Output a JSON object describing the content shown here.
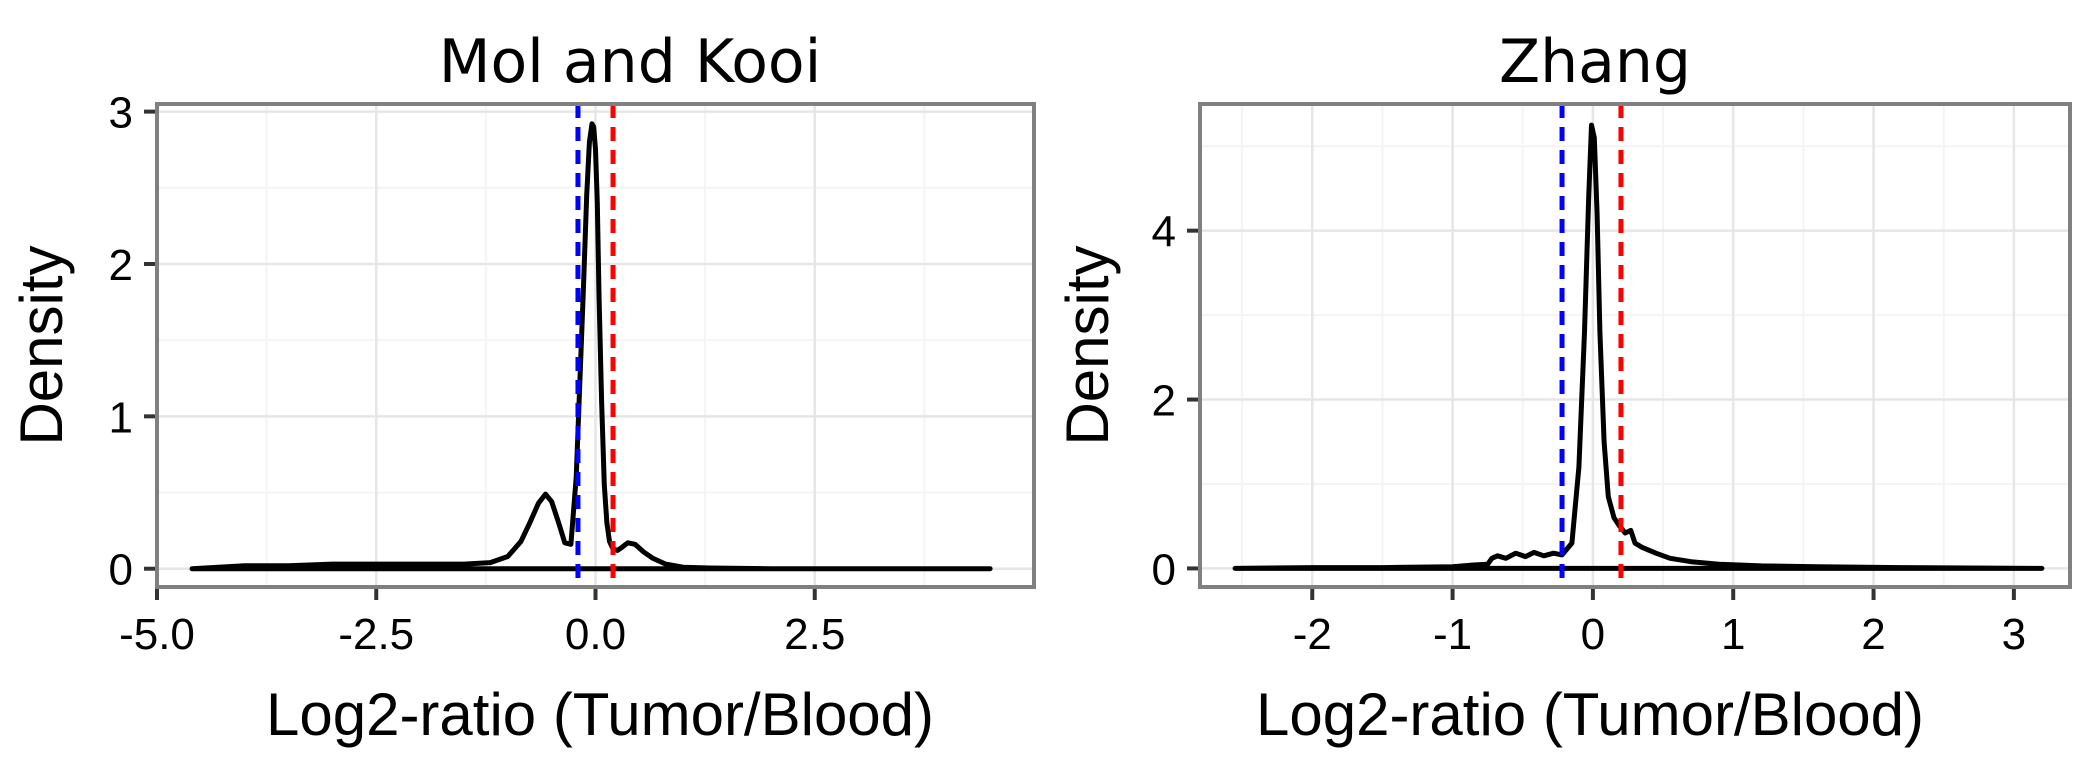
{
  "chart_data": [
    {
      "type": "line",
      "title": "Mol and Kooi",
      "xlabel": "Log2-ratio (Tumor/Blood)",
      "ylabel": "Density",
      "xlim": [
        -5.0,
        5.0
      ],
      "ylim": [
        -0.12,
        3.05
      ],
      "x_ticks": [
        -5.0,
        -2.5,
        0.0,
        2.5
      ],
      "x_tick_labels": [
        "-5.0",
        "-2.5",
        "0.0",
        "2.5"
      ],
      "y_ticks": [
        0,
        1,
        2,
        3
      ],
      "y_tick_labels": [
        "0",
        "1",
        "2",
        "3"
      ],
      "grid": true,
      "legend": "none",
      "vlines": [
        {
          "x": -0.2,
          "color": "#0000ff",
          "style": "dashed"
        },
        {
          "x": 0.2,
          "color": "#ff0000",
          "style": "dashed"
        }
      ],
      "series": [
        {
          "color": "#000000",
          "x": [
            -4.6,
            -4.0,
            -3.5,
            -3.0,
            -2.5,
            -2.0,
            -1.5,
            -1.2,
            -1.0,
            -0.85,
            -0.75,
            -0.65,
            -0.57,
            -0.5,
            -0.42,
            -0.35,
            -0.28,
            -0.22,
            -0.18,
            -0.14,
            -0.1,
            -0.07,
            -0.04,
            -0.02,
            0.0,
            0.02,
            0.04,
            0.07,
            0.1,
            0.13,
            0.16,
            0.2,
            0.25,
            0.3,
            0.37,
            0.45,
            0.55,
            0.65,
            0.8,
            1.0,
            1.3,
            2.0,
            3.0,
            4.5,
            4.5,
            -4.6
          ],
          "y": [
            0.0,
            0.02,
            0.02,
            0.03,
            0.03,
            0.03,
            0.03,
            0.04,
            0.08,
            0.18,
            0.3,
            0.43,
            0.49,
            0.44,
            0.3,
            0.17,
            0.16,
            0.6,
            1.2,
            1.8,
            2.45,
            2.8,
            2.92,
            2.9,
            2.75,
            2.4,
            1.8,
            1.1,
            0.55,
            0.3,
            0.18,
            0.13,
            0.12,
            0.14,
            0.17,
            0.16,
            0.11,
            0.07,
            0.03,
            0.01,
            0.005,
            0.0,
            0.0,
            0.0,
            0.0,
            0.0
          ]
        }
      ]
    },
    {
      "type": "line",
      "title": "Zhang",
      "xlabel": "Log2-ratio (Tumor/Blood)",
      "ylabel": "Density",
      "xlim": [
        -2.8,
        3.4
      ],
      "ylim": [
        -0.22,
        5.5
      ],
      "x_ticks": [
        -2,
        -1,
        0,
        1,
        2,
        3
      ],
      "x_tick_labels": [
        "-2",
        "-1",
        "0",
        "1",
        "2",
        "3"
      ],
      "y_ticks": [
        0,
        2,
        4
      ],
      "y_tick_labels": [
        "0",
        "2",
        "4"
      ],
      "grid": true,
      "legend": "none",
      "vlines": [
        {
          "x": -0.22,
          "color": "#0000ff",
          "style": "dashed"
        },
        {
          "x": 0.2,
          "color": "#ff0000",
          "style": "dashed"
        }
      ],
      "series": [
        {
          "color": "#000000",
          "x": [
            -2.55,
            -2.0,
            -1.5,
            -1.0,
            -0.85,
            -0.75,
            -0.72,
            -0.68,
            -0.62,
            -0.55,
            -0.48,
            -0.42,
            -0.35,
            -0.28,
            -0.22,
            -0.15,
            -0.1,
            -0.06,
            -0.03,
            -0.01,
            0.01,
            0.03,
            0.05,
            0.08,
            0.11,
            0.15,
            0.19,
            0.23,
            0.27,
            0.3,
            0.35,
            0.45,
            0.55,
            0.7,
            0.9,
            1.2,
            1.6,
            2.2,
            3.2,
            3.2,
            -2.55
          ],
          "y": [
            0.0,
            0.01,
            0.01,
            0.02,
            0.04,
            0.05,
            0.12,
            0.15,
            0.12,
            0.18,
            0.14,
            0.19,
            0.15,
            0.18,
            0.16,
            0.3,
            1.2,
            2.8,
            4.4,
            5.25,
            5.1,
            4.2,
            2.8,
            1.5,
            0.85,
            0.6,
            0.5,
            0.42,
            0.45,
            0.3,
            0.25,
            0.18,
            0.12,
            0.08,
            0.05,
            0.03,
            0.02,
            0.01,
            0.0,
            0.0,
            0.0
          ]
        }
      ]
    }
  ]
}
